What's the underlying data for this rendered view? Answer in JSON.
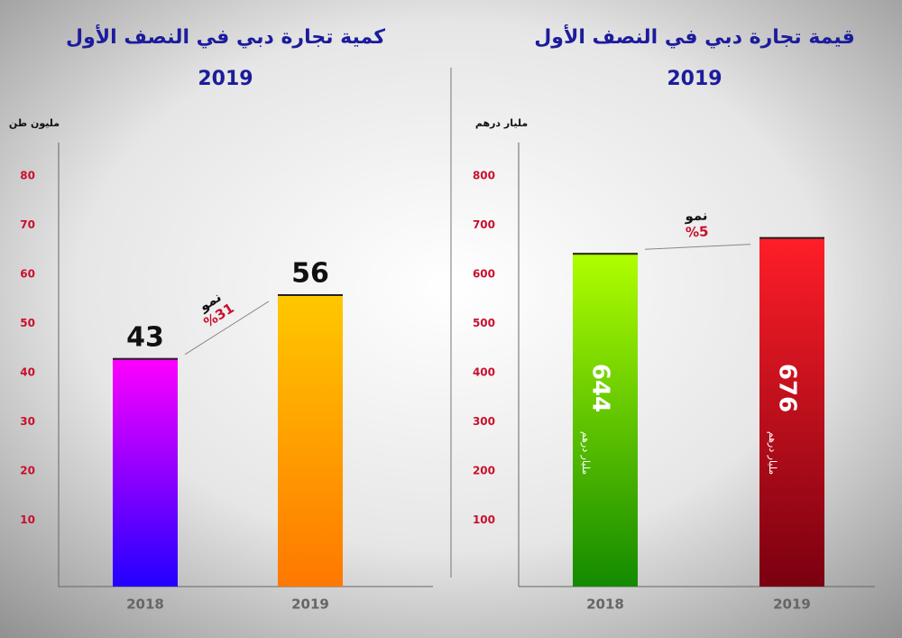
{
  "chart_data": [
    {
      "type": "bar",
      "title": "كمية تجارة دبي في النصف الأول",
      "subtitle": "2019",
      "y_label": "مليون طن",
      "categories": [
        "2018",
        "2019"
      ],
      "series": [
        {
          "values": [
            43,
            56
          ],
          "colors": [
            [
              "#ff00ff",
              "#2200ff"
            ],
            [
              "#ffc800",
              "#ff7800"
            ]
          ]
        }
      ],
      "value_label_position": "above",
      "ylim": [
        0,
        85
      ],
      "yticks": [
        10,
        20,
        30,
        40,
        50,
        60,
        70,
        80
      ],
      "annotation": {
        "label": "نمو",
        "text": "%31"
      }
    },
    {
      "type": "bar",
      "title": "قيمة تجارة دبي في النصف الأول",
      "subtitle": "2019",
      "y_label": "مليار درهم",
      "categories": [
        "2018",
        "2019"
      ],
      "series": [
        {
          "values": [
            644,
            676
          ],
          "colors": [
            [
              "#b0ff00",
              "#138a00"
            ],
            [
              "#ff1e28",
              "#7a0010"
            ]
          ]
        }
      ],
      "value_label_position": "inside",
      "ylim": [
        0,
        850
      ],
      "yticks": [
        100,
        200,
        300,
        400,
        500,
        600,
        700,
        800
      ],
      "annotation": {
        "label": "نمو",
        "text": "%5"
      }
    }
  ]
}
